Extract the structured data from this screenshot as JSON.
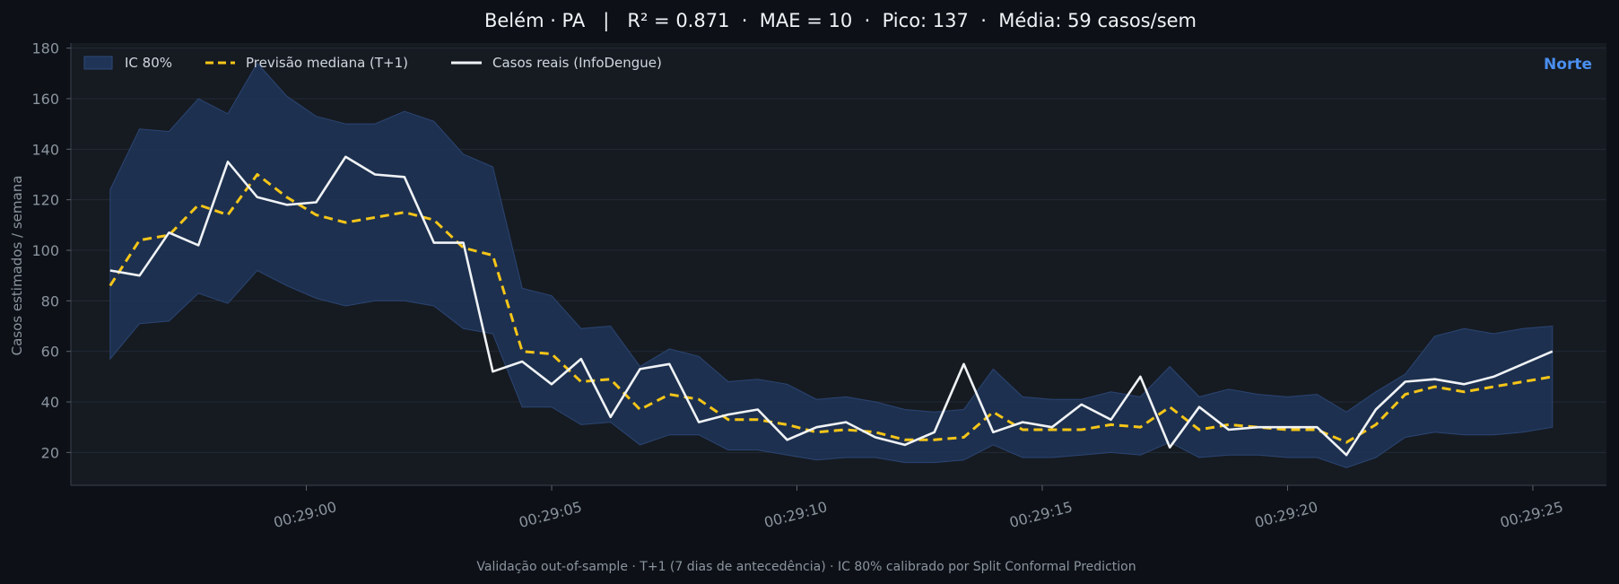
{
  "title": "Belém · PA   |   R² = 0.871  ·  MAE = 10  ·  Pico: 137  ·  Média: 59 casos/sem",
  "footer": "Validação out-of-sample · T+1 (7 dias de antecedência) · IC 80% calibrado por Split Conformal Prediction",
  "region_label": "Norte",
  "colors": {
    "background": "#0d1117",
    "plot_background": "#161b22",
    "band": "#1f3457",
    "median": "#f5c518",
    "actual": "#f0f3f6",
    "region": "#4a8ff0"
  },
  "chart_data": {
    "type": "line",
    "ylabel": "Casos estimados / semana",
    "xlabel": "",
    "ylim": [
      7,
      182
    ],
    "yticks": [
      20,
      40,
      60,
      80,
      100,
      120,
      140,
      160,
      180
    ],
    "xlim": [
      -2.8,
      28.5
    ],
    "xtick_labels": [
      "00:29:00",
      "00:29:05",
      "00:29:10",
      "00:29:15",
      "00:29:20",
      "00:29:25"
    ],
    "xtick_values": [
      2,
      7,
      12,
      17,
      22,
      27
    ],
    "grid": true,
    "legend_position": "top-left",
    "legend": [
      "IC 80%",
      "Previsão mediana (T+1)",
      "Casos reais (InfoDengue)"
    ],
    "x": [
      -2,
      -1.4,
      -0.8,
      -0.2,
      0.4,
      1,
      1.6,
      2.2,
      2.8,
      3.4,
      4,
      4.6,
      5.2,
      5.8,
      6.4,
      7,
      7.6,
      8.2,
      8.8,
      9.4,
      10,
      10.6,
      11.2,
      11.8,
      12.4,
      13,
      13.6,
      14.2,
      14.8,
      15.4,
      16,
      16.6,
      17.2,
      17.8,
      18.4,
      19,
      19.6,
      20.2,
      20.8,
      21.4,
      22,
      22.6,
      23.2,
      23.8,
      24.4,
      25,
      25.6,
      26.2,
      26.8,
      27.4
    ],
    "series": [
      {
        "name": "Casos reais (InfoDengue)",
        "values": [
          92,
          90,
          107,
          102,
          135,
          121,
          118,
          119,
          137,
          130,
          129,
          103,
          103,
          52,
          56,
          47,
          57,
          34,
          53,
          55,
          32,
          35,
          37,
          25,
          30,
          32,
          26,
          23,
          28,
          55,
          28,
          32,
          30,
          39,
          33,
          50,
          22,
          38,
          29,
          30,
          30,
          30,
          19,
          37,
          48,
          49,
          47,
          50,
          55,
          60
        ]
      },
      {
        "name": "Previsão mediana (T+1)",
        "values": [
          86,
          104,
          106,
          118,
          114,
          130,
          121,
          114,
          111,
          113,
          115,
          112,
          101,
          98,
          60,
          59,
          48,
          49,
          37,
          43,
          41,
          33,
          33,
          31,
          28,
          29,
          28,
          25,
          25,
          26,
          36,
          29,
          29,
          29,
          31,
          30,
          38,
          29,
          31,
          30,
          29,
          29,
          24,
          31,
          43,
          46,
          44,
          46,
          48,
          50
        ]
      },
      {
        "name": "IC 80% (superior)",
        "values": [
          124,
          148,
          147,
          160,
          154,
          174,
          161,
          153,
          150,
          150,
          155,
          151,
          138,
          133,
          85,
          82,
          69,
          70,
          54,
          61,
          58,
          48,
          49,
          47,
          41,
          42,
          40,
          37,
          36,
          37,
          53,
          42,
          41,
          41,
          44,
          42,
          54,
          42,
          45,
          43,
          42,
          43,
          36,
          44,
          51,
          66,
          69,
          67,
          69,
          70
        ]
      },
      {
        "name": "IC 80% (inferior)",
        "values": [
          57,
          71,
          72,
          83,
          79,
          92,
          86,
          81,
          78,
          80,
          80,
          78,
          69,
          67,
          38,
          38,
          31,
          32,
          23,
          27,
          27,
          21,
          21,
          19,
          17,
          18,
          18,
          16,
          16,
          17,
          23,
          18,
          18,
          19,
          20,
          19,
          24,
          18,
          19,
          19,
          18,
          18,
          14,
          18,
          26,
          28,
          27,
          27,
          28,
          30
        ]
      }
    ]
  }
}
